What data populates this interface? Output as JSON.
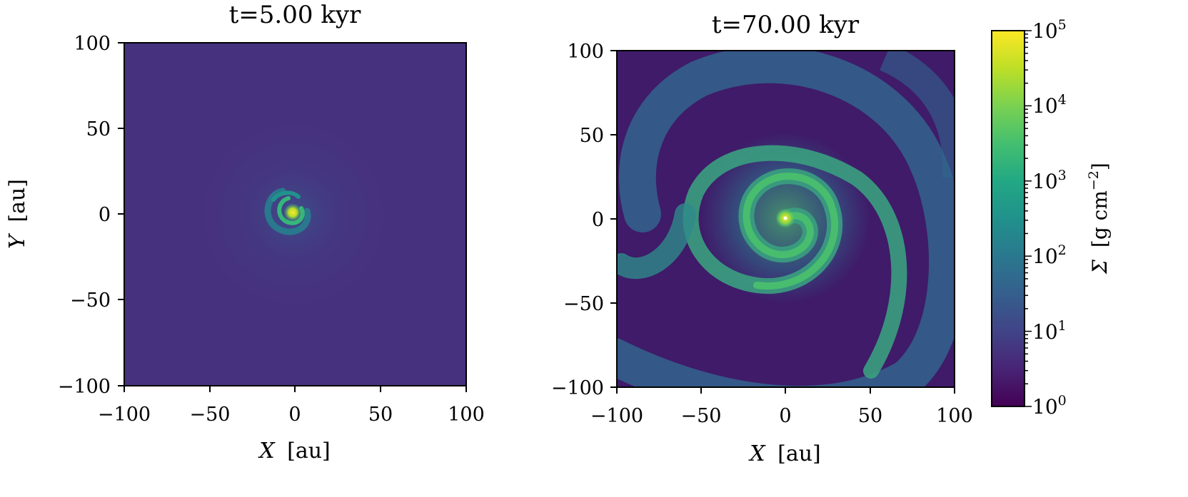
{
  "chart_data": [
    {
      "type": "heatmap",
      "title": "t=5.00 kyr",
      "xlabel": "X",
      "xunit": "[au]",
      "ylabel": "Y",
      "yunit": "[au]",
      "xlim": [
        -100,
        100
      ],
      "ylim": [
        -100,
        100
      ],
      "xticks": [
        -100,
        -50,
        0,
        50,
        100
      ],
      "yticks": [
        -100,
        -50,
        0,
        50,
        100
      ],
      "tick_labels": [
        "−100",
        "−50",
        "0",
        "50",
        "100"
      ],
      "background_sigma": 1.6,
      "features": [
        {
          "kind": "core",
          "x": 0,
          "y": 0,
          "sigma_peak": 50000
        },
        {
          "kind": "compact-spiral",
          "center": [
            -2,
            0
          ],
          "extent_au": 18,
          "sigma": 300
        }
      ]
    },
    {
      "type": "heatmap",
      "title": "t=70.00 kyr",
      "xlabel": "X",
      "xunit": "[au]",
      "ylabel": "",
      "xlim": [
        -100,
        100
      ],
      "ylim": [
        -100,
        100
      ],
      "xticks": [
        -100,
        -50,
        0,
        50,
        100
      ],
      "yticks": [
        -100,
        -50,
        0,
        50,
        100
      ],
      "tick_labels": [
        "−100",
        "−50",
        "0",
        "50",
        "100"
      ],
      "background_sigma": 1.2,
      "features": [
        {
          "kind": "core",
          "x": 0,
          "y": 0,
          "sigma_peak": 100000
        },
        {
          "kind": "spiral-arm",
          "sigma": 400
        },
        {
          "kind": "outer-arm",
          "sigma": 40
        }
      ]
    }
  ],
  "colorbar": {
    "label": "Σ",
    "unit": "[g cm",
    "unit_exp": "−2",
    "unit_close": "]",
    "colormap": "viridis",
    "scale": "log",
    "range": [
      1,
      100000
    ],
    "tick_base": "10",
    "tick_exponents": [
      "0",
      "1",
      "2",
      "3",
      "4",
      "5"
    ]
  }
}
